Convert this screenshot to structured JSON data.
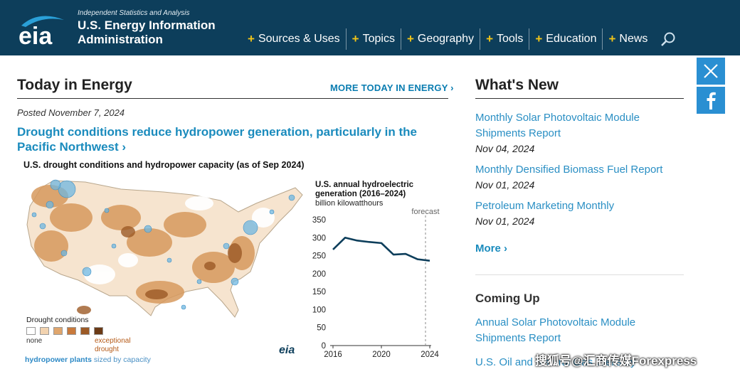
{
  "header": {
    "tagline": "Independent Statistics and Analysis",
    "org_name": "U.S. Energy Information Administration",
    "logo_text": "eia",
    "nav": [
      "Sources & Uses",
      "Topics",
      "Geography",
      "Tools",
      "Education",
      "News"
    ]
  },
  "social": [
    "x-icon",
    "facebook-icon"
  ],
  "today": {
    "title": "Today in Energy",
    "more_link": "MORE TODAY IN ENERGY ›",
    "posted": "Posted November 7, 2024",
    "headline": "Drought conditions reduce hydropower generation, particularly in the Pacific Northwest ›",
    "map_title": "U.S. drought conditions and hydropower capacity (as of Sep 2024)",
    "legend_title": "Drought conditions",
    "legend_none": "none",
    "legend_exceptional": "exceptional drought",
    "legend_colors": [
      "#ffffff",
      "#f2d3b0",
      "#e0a66d",
      "#c97a3c",
      "#9c5a26",
      "#6b3a16"
    ],
    "hydro_label": "hydropower plants",
    "hydro_sized": "sized by capacity",
    "eia_mark": "eia"
  },
  "chart_data": {
    "type": "line",
    "title": "U.S. annual hydroelectric generation (2016–2024)",
    "units": "billion kilowatthours",
    "annotation": "forecast",
    "x": [
      2016,
      2017,
      2018,
      2019,
      2020,
      2021,
      2022,
      2023,
      2024
    ],
    "values": [
      267,
      300,
      292,
      288,
      285,
      253,
      255,
      240,
      236
    ],
    "ylim": [
      0,
      350
    ],
    "yticks": [
      0,
      50,
      100,
      150,
      200,
      250,
      300,
      350
    ],
    "xticks": [
      2016,
      2020,
      2024
    ],
    "forecast_x": 2024,
    "line_color": "#0d3e5b"
  },
  "whats_new": {
    "title": "What's New",
    "items": [
      {
        "label": "Monthly Solar Photovoltaic Module Shipments Report",
        "date": "Nov 04, 2024"
      },
      {
        "label": "Monthly Densified Biomass Fuel Report",
        "date": "Nov 01, 2024"
      },
      {
        "label": "Petroleum Marketing Monthly",
        "date": "Nov 01, 2024"
      }
    ],
    "more": "More ›"
  },
  "coming_up": {
    "title": "Coming Up",
    "items": [
      {
        "label": "Annual Solar Photovoltaic Module Shipments Report"
      },
      {
        "label": "U.S. Oil and Natural Gas Wells by"
      }
    ]
  },
  "watermark": "搜狐号@汇商传媒Forexpress"
}
